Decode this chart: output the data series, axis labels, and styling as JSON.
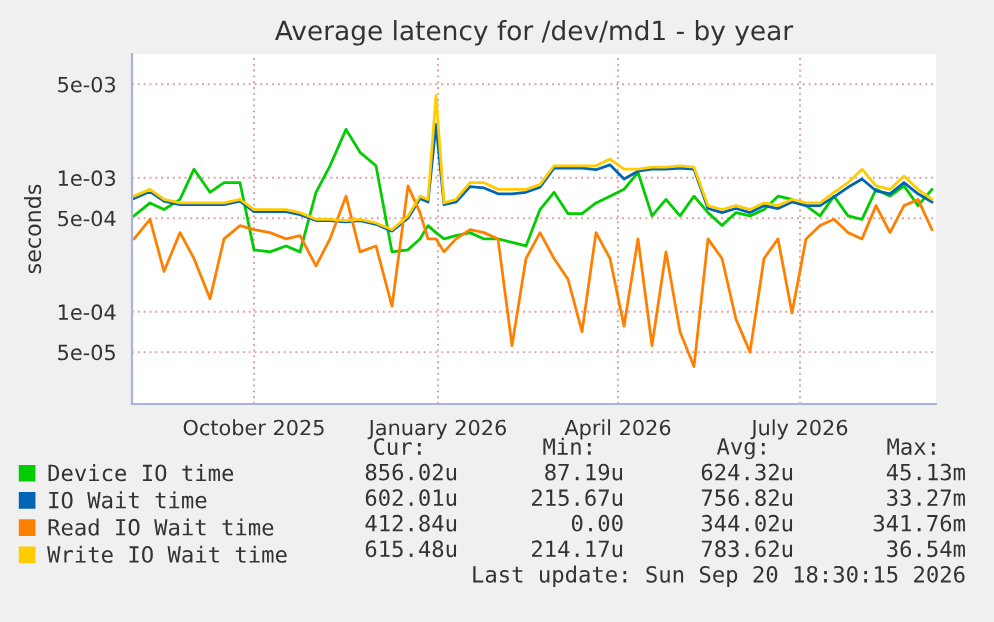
{
  "chart_data": {
    "type": "line",
    "title": "Average latency for /dev/md1 - by year",
    "ylabel": "seconds",
    "log": true,
    "grid": true,
    "legend": "bottom",
    "ylim": [
      2.05e-05,
      0.0084
    ],
    "yticks": [
      {
        "value": 0.005,
        "label": "5e-03"
      },
      {
        "value": 0.001,
        "label": "1e-03"
      },
      {
        "value": 0.0005,
        "label": "5e-04"
      },
      {
        "value": 0.0001,
        "label": "1e-04"
      },
      {
        "value": 5e-05,
        "label": "5e-05"
      }
    ],
    "xlim": [
      "2025-08-16",
      "2026-09-22"
    ],
    "xticks": [
      {
        "value": "2025-10-16",
        "label": "October 2025"
      },
      {
        "value": "2026-01-16",
        "label": "January 2026"
      },
      {
        "value": "2026-04-16",
        "label": "April 2026"
      },
      {
        "value": "2026-07-16",
        "label": "July 2026"
      }
    ],
    "x": [
      "2025-08-17",
      "2025-08-25",
      "2025-09-01",
      "2025-09-09",
      "2025-09-16",
      "2025-09-24",
      "2025-10-01",
      "2025-10-09",
      "2025-10-16",
      "2025-10-24",
      "2025-11-01",
      "2025-11-08",
      "2025-11-16",
      "2025-11-23",
      "2025-12-01",
      "2025-12-08",
      "2025-12-16",
      "2025-12-24",
      "2026-01-01",
      "2026-01-07",
      "2026-01-11",
      "2026-01-15",
      "2026-01-19",
      "2026-01-25",
      "2026-02-01",
      "2026-02-08",
      "2026-02-15",
      "2026-02-22",
      "2026-03-01",
      "2026-03-08",
      "2026-03-15",
      "2026-03-22",
      "2026-03-29",
      "2026-04-05",
      "2026-04-12",
      "2026-04-19",
      "2026-04-26",
      "2026-05-03",
      "2026-05-10",
      "2026-05-17",
      "2026-05-24",
      "2026-05-31",
      "2026-06-07",
      "2026-06-14",
      "2026-06-21",
      "2026-06-28",
      "2026-07-05",
      "2026-07-12",
      "2026-07-19",
      "2026-07-26",
      "2026-08-02",
      "2026-08-09",
      "2026-08-16",
      "2026-08-23",
      "2026-08-30",
      "2026-09-06",
      "2026-09-13",
      "2026-09-20"
    ],
    "series": [
      {
        "name": "Device IO time",
        "color": "#00cc00",
        "values": [
          0.00052,
          0.00065,
          0.00058,
          0.00069,
          0.00116,
          0.00078,
          0.00092,
          0.00092,
          0.00029,
          0.00028,
          0.00031,
          0.00028,
          0.00078,
          0.00123,
          0.0023,
          0.00155,
          0.00123,
          0.00028,
          0.00029,
          0.00035,
          0.00044,
          0.00039,
          0.00035,
          0.00037,
          0.00039,
          0.00035,
          0.00035,
          0.00033,
          0.00031,
          0.00058,
          0.00078,
          0.00054,
          0.00054,
          0.00065,
          0.00073,
          0.00082,
          0.0011,
          0.00052,
          0.00069,
          0.00052,
          0.00073,
          0.00055,
          0.00044,
          0.00055,
          0.00052,
          0.00058,
          0.00073,
          0.00069,
          0.00062,
          0.00052,
          0.00073,
          0.00052,
          0.00049,
          0.00082,
          0.00073,
          0.00087,
          0.00062,
          0.00082
        ]
      },
      {
        "name": "IO Wait time",
        "color": "#0066b3",
        "values": [
          0.0007,
          0.00079,
          0.00067,
          0.00063,
          0.00063,
          0.00063,
          0.00063,
          0.00067,
          0.00056,
          0.00056,
          0.00056,
          0.00053,
          0.00048,
          0.00048,
          0.00047,
          0.00048,
          0.00045,
          0.0004,
          0.0005,
          0.0007,
          0.00066,
          0.0025,
          0.00063,
          0.00066,
          0.00086,
          0.00084,
          0.00076,
          0.00076,
          0.00078,
          0.00085,
          0.00118,
          0.00118,
          0.00118,
          0.00115,
          0.00125,
          0.00098,
          0.00112,
          0.00116,
          0.00116,
          0.00118,
          0.00116,
          0.00059,
          0.00055,
          0.00059,
          0.00055,
          0.00062,
          0.00059,
          0.00066,
          0.00062,
          0.00062,
          0.00072,
          0.00085,
          0.00098,
          0.0008,
          0.00076,
          0.00092,
          0.00076,
          0.00066
        ]
      },
      {
        "name": "Read IO Wait time",
        "color": "#ff8000",
        "values": [
          0.00035,
          0.00049,
          0.0002,
          0.00039,
          0.00025,
          0.000125,
          0.00035,
          0.00044,
          0.00041,
          0.00039,
          0.00035,
          0.00037,
          0.00022,
          0.00035,
          0.00073,
          0.00028,
          0.00031,
          0.00011,
          0.00087,
          0.00055,
          0.00035,
          0.00035,
          0.00028,
          0.00035,
          0.00041,
          0.00039,
          0.00035,
          5.6e-05,
          0.00025,
          0.00039,
          0.00025,
          0.000175,
          7.1e-05,
          0.00039,
          0.00025,
          7.8e-05,
          0.00035,
          5.6e-05,
          0.00028,
          7.1e-05,
          3.9e-05,
          0.00035,
          0.00025,
          8.8e-05,
          5e-05,
          0.00025,
          0.00035,
          9.8e-05,
          0.00035,
          0.00044,
          0.00049,
          0.00039,
          0.00035,
          0.00062,
          0.00039,
          0.00062,
          0.00069,
          0.00041
        ]
      },
      {
        "name": "Write IO Wait time",
        "color": "#ffcc00",
        "values": [
          0.00073,
          0.00082,
          0.00069,
          0.00065,
          0.00065,
          0.00065,
          0.00065,
          0.00069,
          0.00058,
          0.00058,
          0.00058,
          0.00055,
          0.00049,
          0.00049,
          0.00048,
          0.00049,
          0.00046,
          0.00041,
          0.00052,
          0.00073,
          0.00069,
          0.0041,
          0.00065,
          0.00069,
          0.00092,
          0.00092,
          0.00082,
          0.00082,
          0.00082,
          0.00089,
          0.00123,
          0.00123,
          0.00123,
          0.00123,
          0.00138,
          0.00116,
          0.00116,
          0.0012,
          0.0012,
          0.00123,
          0.0012,
          0.00062,
          0.00058,
          0.00062,
          0.00058,
          0.00065,
          0.00062,
          0.00069,
          0.00065,
          0.00065,
          0.00078,
          0.00092,
          0.00116,
          0.00087,
          0.00082,
          0.00103,
          0.00082,
          0.00069
        ]
      }
    ],
    "annotations": [
      "Cur:",
      "Min:",
      "Avg:",
      "Max:",
      "856.02u",
      "87.19u",
      "624.32u",
      "45.13m",
      "602.01u",
      "215.67u",
      "756.82u",
      "33.27m",
      "412.84u",
      "0.00",
      "344.02u",
      "341.76m",
      "615.48u",
      "214.17u",
      "783.62u",
      "36.54m",
      "Last update: Sun Sep 20 18:30:15 2026"
    ]
  }
}
